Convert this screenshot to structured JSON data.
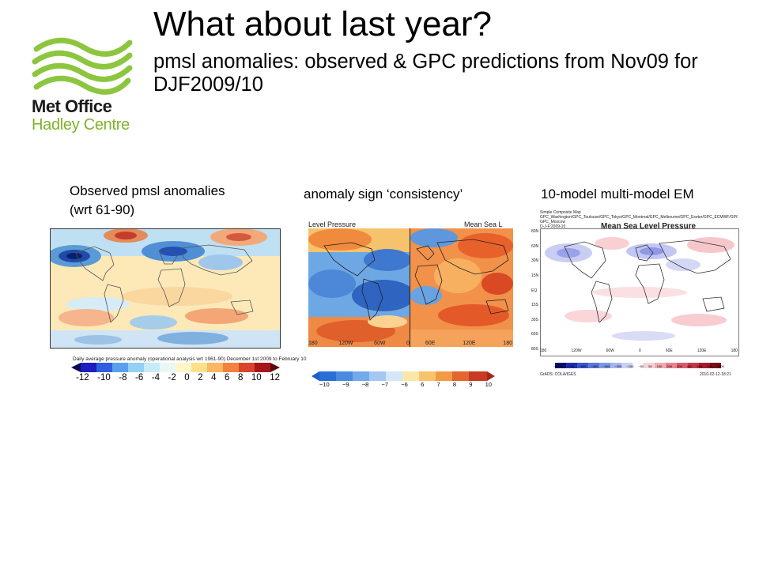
{
  "slide": {
    "title": "What about last year?",
    "subtitle": "pmsl anomalies: observed & GPC predictions from Nov09 for DJF2009/10"
  },
  "logo": {
    "line1": "Met Office",
    "line2": "Hadley Centre",
    "colors": {
      "waves": "#8cc63f",
      "text": "#1a1a1a",
      "subtext": "#7fb42a"
    }
  },
  "panels": {
    "observed": {
      "caption_line1": "Observed pmsl anomalies",
      "caption_line2": "(wrt 61-90)",
      "colorbar_title": "Daily average pressure anomaly (operational analysis wrt 1961-90) December 1st 2009 to February 10",
      "colorbar_ticks": [
        "-12",
        "-10",
        "-8",
        "-6",
        "-4",
        "-2",
        "0",
        "2",
        "4",
        "6",
        "8",
        "10",
        "12"
      ]
    },
    "consistency": {
      "caption": "anomaly sign ‘consistency’",
      "map_left_title": "Level Pressure",
      "map_right_title": "Mean Sea L",
      "lon_labels_left": [
        "180",
        "120W",
        "60W",
        "0"
      ],
      "lon_labels_right": [
        "60E",
        "120E",
        "180"
      ],
      "colorbar_ticks": [
        "−10",
        "−9",
        "−8",
        "−7",
        "−6",
        "6",
        "7",
        "8",
        "9",
        "10"
      ]
    },
    "multimodel": {
      "caption": "10-model multi-model EM",
      "header_line1": "Simple Composite Map",
      "header_line2": "GPC_Washington/GPC_Toulouse/GPC_Tokyo/GPC_Montreal/GPC_Melbourne/GPC_Exeter/GPC_ECMWF/GPC_Beijing",
      "header_line3": "GPC_Moscow",
      "header_line4": "D-J-F:2009-10",
      "map_title": "Mean Sea Level Pressure",
      "lat_labels": [
        "80N",
        "60N",
        "30N",
        "15N",
        "EQ",
        "15S",
        "30S",
        "60S",
        "80S"
      ],
      "lon_labels": [
        "180",
        "120W",
        "60W",
        "0",
        "60E",
        "120E",
        "180"
      ],
      "colorbar_ticks": [
        "−1000",
        "−700",
        "−500",
        "−400",
        "−300",
        "−200",
        "−100",
        "−50",
        "50",
        "100",
        "200",
        "300",
        "400",
        "500",
        "700",
        "1000"
      ],
      "footer_left": "GrADS: COLA/IGES",
      "footer_right": "2010-02-12-18:21"
    }
  }
}
